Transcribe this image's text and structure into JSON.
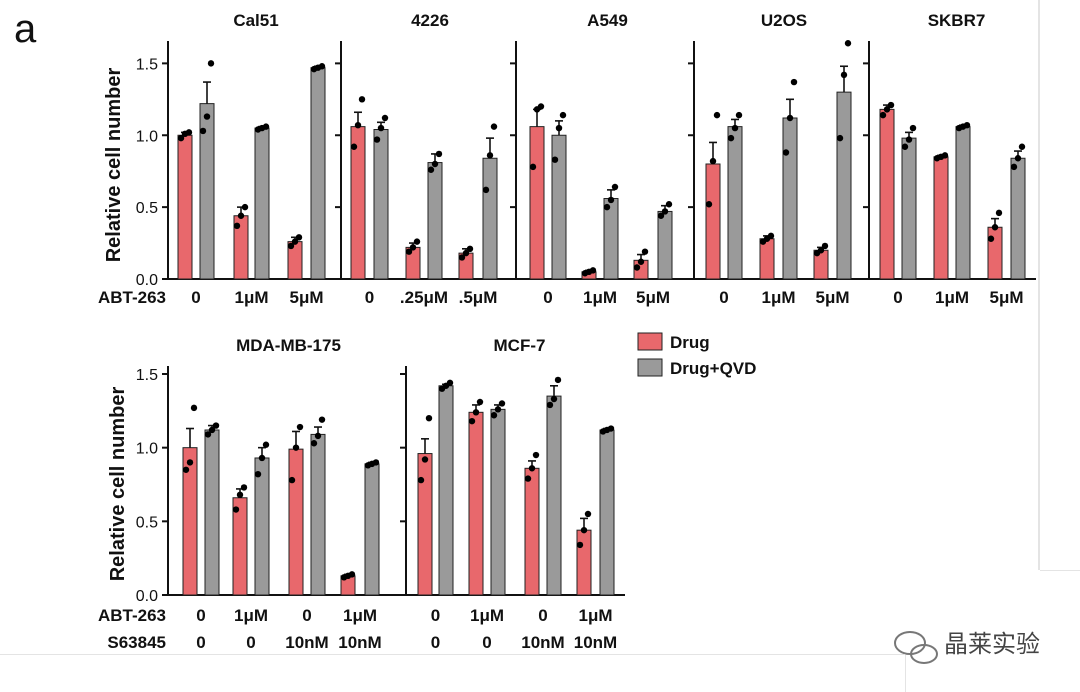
{
  "figure": {
    "panel_label": "a",
    "ylabel": "Relative cell number",
    "row1_treatment_label": "ABT-263",
    "row2_treatment_label": "ABT-263",
    "row2_second_label": "S63845",
    "watermark": "晶莱实验"
  },
  "legend": {
    "items": [
      {
        "label": "Drug",
        "color": "#e8686c"
      },
      {
        "label": "Drug+QVD",
        "color": "#9a9a9a"
      }
    ]
  },
  "colors": {
    "drug": "#e8686c",
    "qvd": "#9a9a9a",
    "axis": "#111111",
    "point": "#000000"
  },
  "chart_data": [
    {
      "type": "bar",
      "title": "Cal51",
      "ylim": [
        0,
        1.6
      ],
      "yticks": [
        "0.0",
        "0.5",
        "1.0",
        "1.5"
      ],
      "categories": [
        [
          "0"
        ],
        [
          "1μM"
        ],
        [
          "5μM"
        ]
      ],
      "series": [
        {
          "name": "Drug",
          "values": [
            1.0,
            0.44,
            0.26
          ],
          "errors": [
            0.02,
            0.06,
            0.03
          ],
          "points": [
            [
              0.98,
              1.01,
              1.02
            ],
            [
              0.37,
              0.44,
              0.5
            ],
            [
              0.23,
              0.26,
              0.29
            ]
          ]
        },
        {
          "name": "Drug+QVD",
          "values": [
            1.22,
            1.05,
            1.47
          ],
          "errors": [
            0.15,
            0.01,
            0.01
          ],
          "points": [
            [
              1.03,
              1.13,
              1.5
            ],
            [
              1.04,
              1.05,
              1.06
            ],
            [
              1.46,
              1.47,
              1.48
            ]
          ]
        }
      ]
    },
    {
      "type": "bar",
      "title": "4226",
      "ylim": [
        0,
        1.6
      ],
      "yticks": [],
      "categories": [
        [
          "0"
        ],
        [
          ".25μM"
        ],
        [
          ".5μM"
        ]
      ],
      "series": [
        {
          "name": "Drug",
          "values": [
            1.06,
            0.22,
            0.18
          ],
          "errors": [
            0.1,
            0.03,
            0.03
          ],
          "points": [
            [
              0.92,
              1.07,
              1.25
            ],
            [
              0.19,
              0.22,
              0.26
            ],
            [
              0.15,
              0.18,
              0.21
            ]
          ]
        },
        {
          "name": "Drug+QVD",
          "values": [
            1.04,
            0.81,
            0.84
          ],
          "errors": [
            0.05,
            0.06,
            0.14
          ],
          "points": [
            [
              0.97,
              1.05,
              1.12
            ],
            [
              0.76,
              0.8,
              0.87
            ],
            [
              0.62,
              0.86,
              1.06
            ]
          ]
        }
      ]
    },
    {
      "type": "bar",
      "title": "A549",
      "ylim": [
        0,
        1.6
      ],
      "yticks": [],
      "categories": [
        [
          "0"
        ],
        [
          "1μM"
        ],
        [
          "5μM"
        ]
      ],
      "series": [
        {
          "name": "Drug",
          "values": [
            1.06,
            0.05,
            0.13
          ],
          "errors": [
            0.12,
            0.01,
            0.04
          ],
          "points": [
            [
              0.78,
              1.18,
              1.2
            ],
            [
              0.04,
              0.05,
              0.06
            ],
            [
              0.08,
              0.12,
              0.19
            ]
          ]
        },
        {
          "name": "Drug+QVD",
          "values": [
            1.0,
            0.56,
            0.47
          ],
          "errors": [
            0.1,
            0.06,
            0.04
          ],
          "points": [
            [
              0.83,
              1.05,
              1.14
            ],
            [
              0.5,
              0.55,
              0.64
            ],
            [
              0.44,
              0.47,
              0.52
            ]
          ]
        }
      ]
    },
    {
      "type": "bar",
      "title": "U2OS",
      "ylim": [
        0,
        1.6
      ],
      "yticks": [],
      "categories": [
        [
          "0"
        ],
        [
          "1μM"
        ],
        [
          "5μM"
        ]
      ],
      "series": [
        {
          "name": "Drug",
          "values": [
            0.8,
            0.28,
            0.2
          ],
          "errors": [
            0.15,
            0.02,
            0.02
          ],
          "points": [
            [
              0.52,
              0.82,
              1.14
            ],
            [
              0.26,
              0.28,
              0.3
            ],
            [
              0.18,
              0.2,
              0.23
            ]
          ]
        },
        {
          "name": "Drug+QVD",
          "values": [
            1.06,
            1.12,
            1.3
          ],
          "errors": [
            0.05,
            0.13,
            0.18
          ],
          "points": [
            [
              0.98,
              1.05,
              1.14
            ],
            [
              0.88,
              1.12,
              1.37
            ],
            [
              0.98,
              1.42,
              1.64
            ]
          ]
        }
      ]
    },
    {
      "type": "bar",
      "title": "SKBR7",
      "ylim": [
        0,
        1.6
      ],
      "yticks": [],
      "categories": [
        [
          "0"
        ],
        [
          "1μM"
        ],
        [
          "5μM"
        ]
      ],
      "series": [
        {
          "name": "Drug",
          "values": [
            1.18,
            0.85,
            0.36
          ],
          "errors": [
            0.03,
            0.01,
            0.06
          ],
          "points": [
            [
              1.14,
              1.18,
              1.21
            ],
            [
              0.84,
              0.85,
              0.86
            ],
            [
              0.28,
              0.36,
              0.46
            ]
          ]
        },
        {
          "name": "Drug+QVD",
          "values": [
            0.98,
            1.06,
            0.84
          ],
          "errors": [
            0.04,
            0.01,
            0.05
          ],
          "points": [
            [
              0.92,
              0.97,
              1.05
            ],
            [
              1.05,
              1.06,
              1.07
            ],
            [
              0.78,
              0.84,
              0.92
            ]
          ]
        }
      ]
    },
    {
      "type": "bar",
      "title": "MDA-MB-175",
      "ylim": [
        0,
        1.5
      ],
      "yticks": [
        "0.0",
        "0.5",
        "1.0",
        "1.5"
      ],
      "categories": [
        [
          "0",
          "0"
        ],
        [
          "1μM",
          "0"
        ],
        [
          "0",
          "10nM"
        ],
        [
          "1μM",
          "10nM"
        ]
      ],
      "series": [
        {
          "name": "Drug",
          "values": [
            1.0,
            0.66,
            0.99,
            0.13
          ],
          "errors": [
            0.13,
            0.06,
            0.12,
            0.01
          ],
          "points": [
            [
              0.85,
              0.9,
              1.27
            ],
            [
              0.58,
              0.68,
              0.73
            ],
            [
              0.78,
              1.0,
              1.14
            ],
            [
              0.12,
              0.13,
              0.14
            ]
          ]
        },
        {
          "name": "Drug+QVD",
          "values": [
            1.12,
            0.93,
            1.09,
            0.89
          ],
          "errors": [
            0.03,
            0.07,
            0.05,
            0.01
          ],
          "points": [
            [
              1.09,
              1.12,
              1.15
            ],
            [
              0.82,
              0.93,
              1.02
            ],
            [
              1.03,
              1.08,
              1.19
            ],
            [
              0.88,
              0.89,
              0.9
            ]
          ]
        }
      ]
    },
    {
      "type": "bar",
      "title": "MCF-7",
      "ylim": [
        0,
        1.5
      ],
      "yticks": [],
      "categories": [
        [
          "0",
          "0"
        ],
        [
          "1μM",
          "0"
        ],
        [
          "0",
          "10nM"
        ],
        [
          "1μM",
          "10nM"
        ]
      ],
      "series": [
        {
          "name": "Drug",
          "values": [
            0.96,
            1.24,
            0.86,
            0.44
          ],
          "errors": [
            0.1,
            0.05,
            0.05,
            0.08
          ],
          "points": [
            [
              0.78,
              0.92,
              1.2
            ],
            [
              1.18,
              1.24,
              1.31
            ],
            [
              0.79,
              0.86,
              0.95
            ],
            [
              0.34,
              0.44,
              0.55
            ]
          ]
        },
        {
          "name": "Drug+QVD",
          "values": [
            1.42,
            1.26,
            1.35,
            1.12
          ],
          "errors": [
            0.01,
            0.03,
            0.07,
            0.01
          ],
          "points": [
            [
              1.4,
              1.42,
              1.44
            ],
            [
              1.22,
              1.26,
              1.3
            ],
            [
              1.29,
              1.33,
              1.46
            ],
            [
              1.11,
              1.12,
              1.13
            ]
          ]
        }
      ]
    }
  ]
}
